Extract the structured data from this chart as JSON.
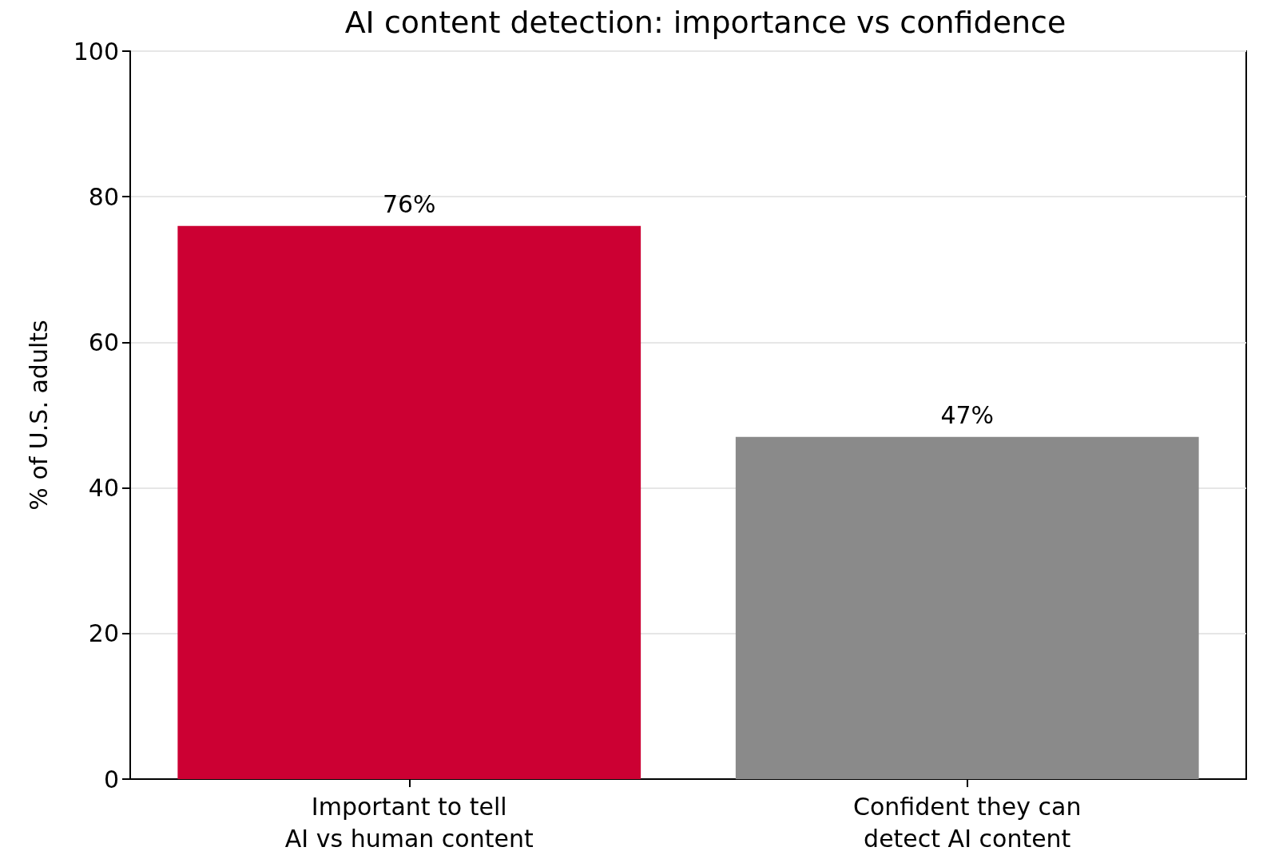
{
  "chart_data": {
    "type": "bar",
    "title": "AI content detection: importance vs confidence",
    "ylabel": "% of U.S. adults",
    "categories": [
      "Important to tell\nAI vs human content",
      "Confident they can\ndetect AI content"
    ],
    "values": [
      76,
      47
    ],
    "colors": [
      "#cc0033",
      "#8a8a8a"
    ],
    "value_labels": [
      "76%",
      "47%"
    ],
    "ylim": [
      0,
      100
    ],
    "yticks": [
      0,
      20,
      40,
      60,
      80,
      100
    ],
    "grid": "y"
  }
}
